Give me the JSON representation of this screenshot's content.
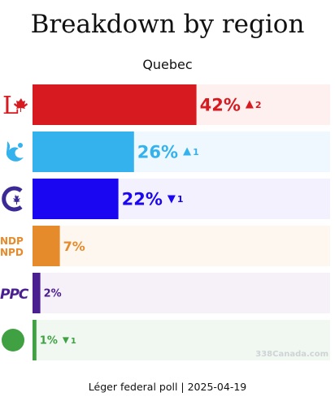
{
  "title": "Breakdown by region",
  "subtitle": "Quebec",
  "footer": "Léger federal poll | 2025-04-19",
  "watermark": "338Canada.com",
  "chart_data": {
    "type": "bar",
    "orientation": "horizontal",
    "title": "Breakdown by region",
    "subtitle": "Quebec",
    "xlim": [
      0,
      100
    ],
    "categories": [
      "LPC",
      "BQ",
      "CPC",
      "NDP",
      "PPC",
      "GPC"
    ],
    "values": [
      42,
      26,
      22,
      7,
      2,
      1
    ],
    "value_labels": [
      "42%",
      "26%",
      "22%",
      "7%",
      "2%",
      "1%"
    ],
    "changes": [
      {
        "direction": "up",
        "text": "2"
      },
      {
        "direction": "up",
        "text": "1"
      },
      {
        "direction": "down",
        "text": "1"
      },
      null,
      null,
      {
        "direction": "down",
        "text": "1"
      }
    ],
    "colors": [
      "#d71920",
      "#33b2ee",
      "#1a06f0",
      "#e58b2b",
      "#4a1f8f",
      "#3fa142"
    ],
    "track_colors": [
      "#fdf0ef",
      "#eef8fe",
      "#f3f1fe",
      "#fef7f0",
      "#f6f1f9",
      "#f0f8f1"
    ],
    "icons": [
      "lpc-logo-icon",
      "bq-logo-icon",
      "cpc-logo-icon",
      "ndp-logo-icon",
      "ppc-logo-icon",
      "gpc-logo-icon"
    ],
    "icon_text": {
      "ndp": [
        "NDP",
        "NPD"
      ],
      "ppc": "PPC"
    }
  }
}
